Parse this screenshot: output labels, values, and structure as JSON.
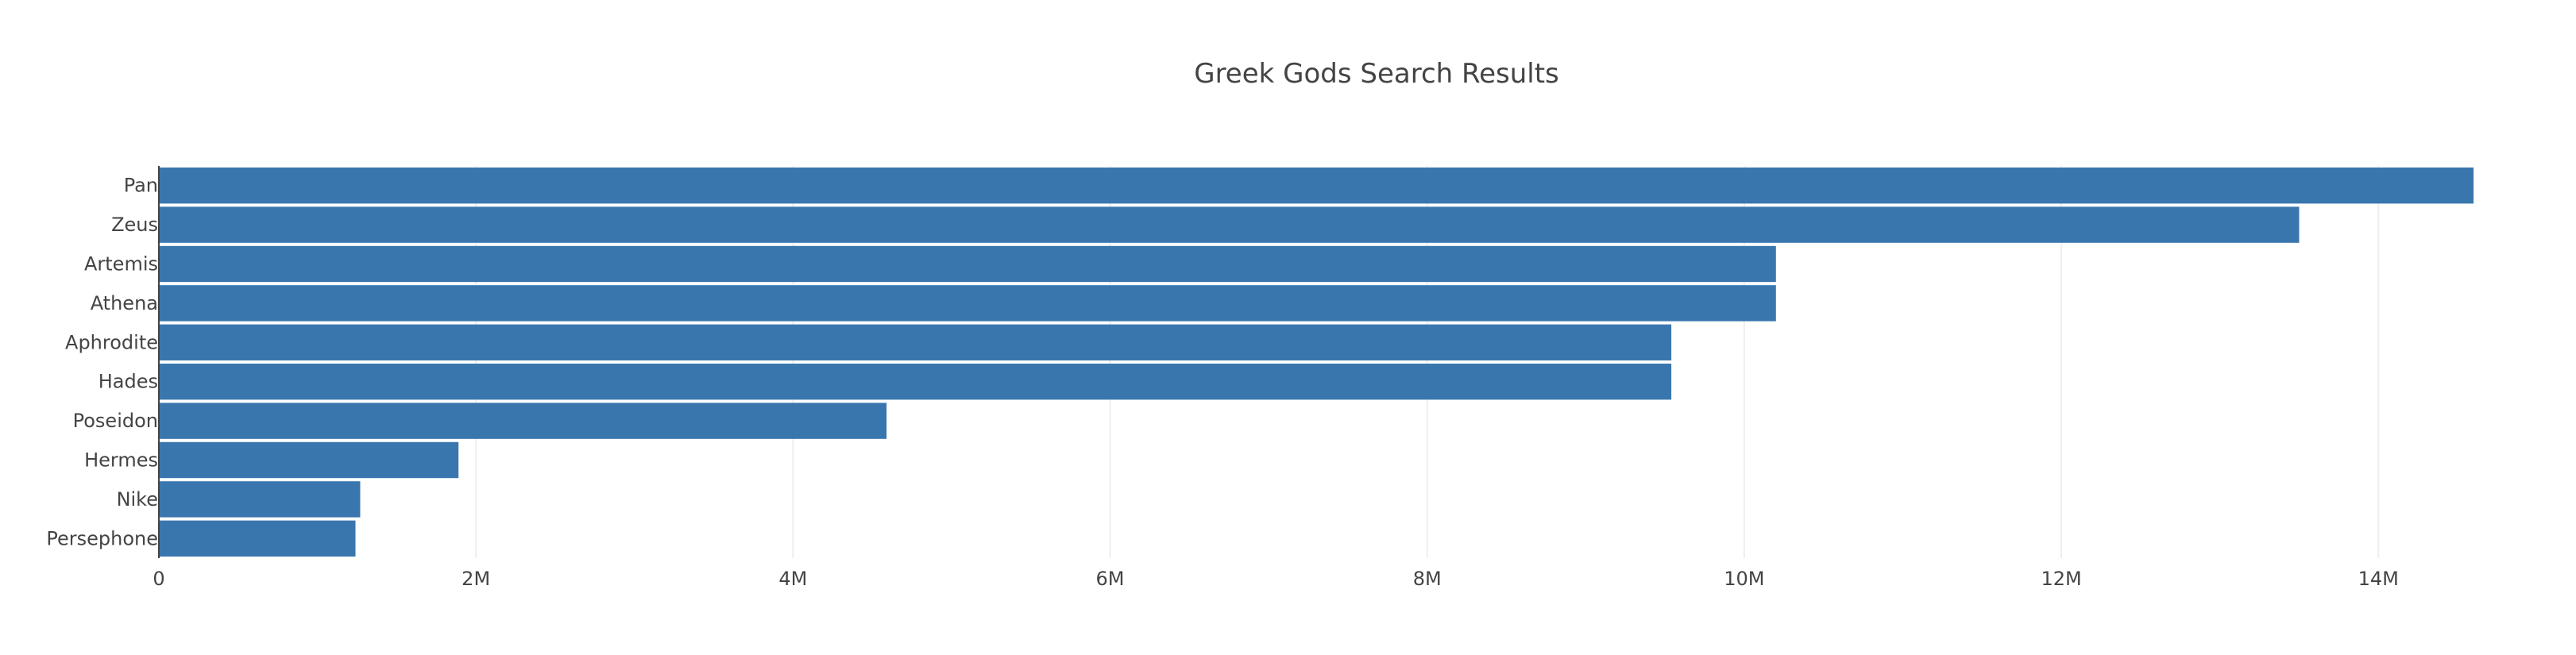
{
  "chart_data": {
    "type": "bar",
    "orientation": "horizontal",
    "title": "Greek Gods Search Results",
    "xlabel": "",
    "ylabel": "",
    "categories": [
      "Pan",
      "Zeus",
      "Artemis",
      "Athena",
      "Aphrodite",
      "Hades",
      "Poseidon",
      "Hermes",
      "Nike",
      "Persephone"
    ],
    "values": [
      14600000,
      13500000,
      10200000,
      10200000,
      9540000,
      9540000,
      4590000,
      1890000,
      1270000,
      1240000
    ],
    "xlim": [
      0,
      14600000
    ],
    "x_ticks": [
      0,
      2000000,
      4000000,
      6000000,
      8000000,
      10000000,
      12000000,
      14000000
    ],
    "x_tick_labels": [
      "0",
      "2M",
      "4M",
      "6M",
      "8M",
      "10M",
      "12M",
      "14M"
    ],
    "grid": {
      "x": true,
      "y": false
    },
    "legend": "none",
    "colors": {
      "bar": "#3a76ae",
      "grid": "#eeeeee",
      "axis": "#444444",
      "text": "#444444"
    }
  }
}
